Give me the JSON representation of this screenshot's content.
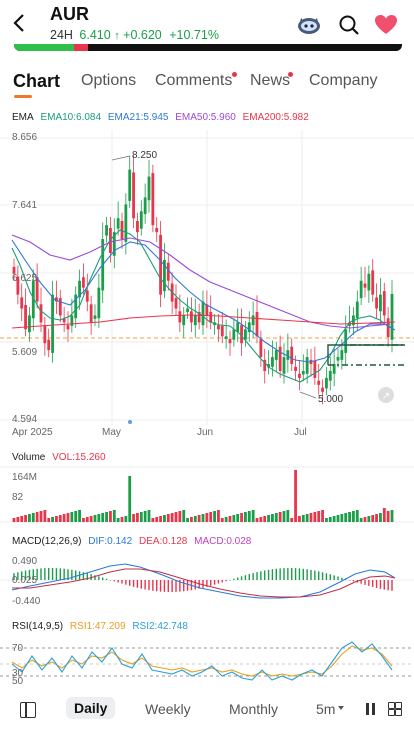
{
  "header": {
    "ticker": "AUR",
    "sub_label": "24H",
    "price": "6.410",
    "change": "+0.620",
    "change_pct": "+10.71%",
    "up_color": "#1a9e4a",
    "down_color": "#e8354c"
  },
  "tabs": [
    {
      "label": "Chart",
      "active": true
    },
    {
      "label": "Options"
    },
    {
      "label": "Comments",
      "badge": true
    },
    {
      "label": "News",
      "badge": true
    },
    {
      "label": "Company"
    }
  ],
  "ema": {
    "name": "EMA",
    "ema10": "EMA10:6.084",
    "ema21": "EMA21:5.945",
    "ema50": "EMA50:5.960",
    "ema200": "EMA200:5.982"
  },
  "price_axis": [
    "8.656",
    "7.641",
    "6.625",
    "5.609",
    "4.594"
  ],
  "annotations": {
    "high": "8.250",
    "low": "5.000"
  },
  "x_labels": [
    "Apr 2025",
    "May",
    "Jun",
    "Jul"
  ],
  "volume": {
    "name": "Volume",
    "vol": "VOL:15.260",
    "axis": [
      "164M",
      "82"
    ]
  },
  "macd": {
    "name": "MACD(12,26,9)",
    "dif": "DIF:0.142",
    "dea": "DEA:0.128",
    "macd": "MACD:0.028",
    "axis": [
      "0.490",
      "0.025",
      "-0.440"
    ]
  },
  "rsi": {
    "name": "RSI(14,9,5)",
    "rsi1": "RSI1:47.209",
    "rsi2": "RSI2:42.748",
    "axis": [
      "70",
      "30",
      "50"
    ]
  },
  "bottom": {
    "tabs": [
      "Daily",
      "Weekly",
      "Monthly",
      "5m"
    ]
  },
  "chart_data": {
    "type": "candlestick",
    "ylim": [
      4.594,
      8.656
    ],
    "closes": [
      6.7,
      6.4,
      6.2,
      5.9,
      6.1,
      6.6,
      6.3,
      6.0,
      5.7,
      5.6,
      6.4,
      6.3,
      6.1,
      6.0,
      5.9,
      6.1,
      6.4,
      6.6,
      6.5,
      6.3,
      6.0,
      6.1,
      6.5,
      7.2,
      7.4,
      7.0,
      7.3,
      7.5,
      7.2,
      7.7,
      8.2,
      7.5,
      7.3,
      7.6,
      7.8,
      8.1,
      7.4,
      7.3,
      6.4,
      6.9,
      6.6,
      6.3,
      6.2,
      6.0,
      6.1,
      6.2,
      6.0,
      6.1,
      6.0,
      6.3,
      6.1,
      6.0,
      6.0,
      5.9,
      5.8,
      5.8,
      5.7,
      5.9,
      6.0,
      5.7,
      5.9,
      6.0,
      6.1,
      5.8,
      5.5,
      5.3,
      5.4,
      5.5,
      5.6,
      5.3,
      5.5,
      5.6,
      5.4,
      5.3,
      5.2,
      5.3,
      5.5,
      5.4,
      5.2,
      5.1,
      5.0,
      5.2,
      5.3,
      5.4,
      5.5,
      5.6,
      5.9,
      6.0,
      6.1,
      6.3,
      6.6,
      6.5,
      6.7,
      6.4,
      6.2,
      6.4,
      6.1,
      5.79,
      6.41
    ]
  }
}
